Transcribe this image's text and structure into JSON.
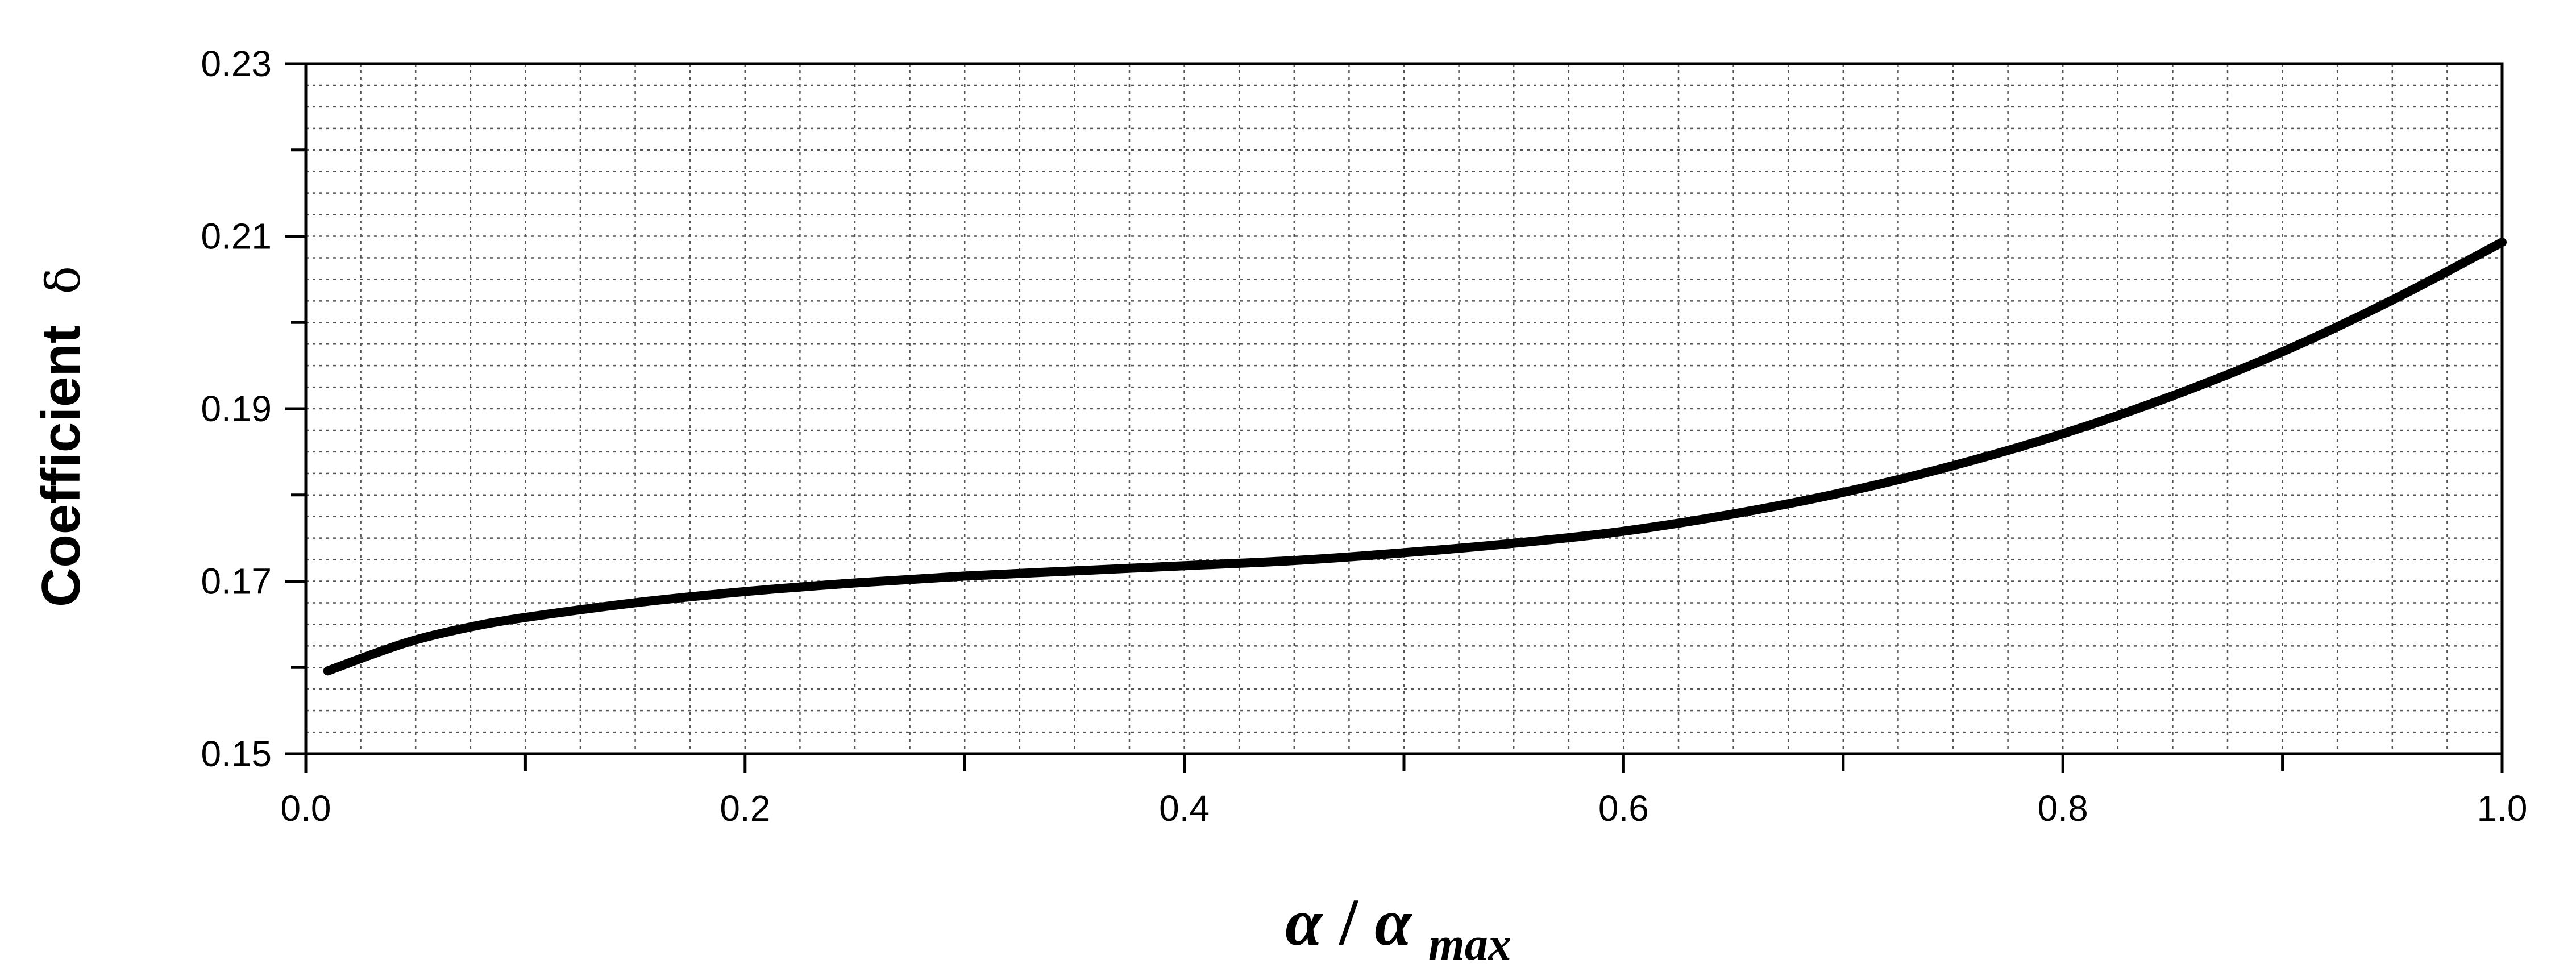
{
  "chart_data": {
    "type": "line",
    "title": "",
    "xlabel": {
      "main": "α",
      "slash": "/",
      "denominator": "α",
      "denominator_subscript": "max"
    },
    "ylabel": {
      "text": "Coefficient",
      "symbol": "δ"
    },
    "xlim": [
      0.0,
      1.0
    ],
    "ylim": [
      0.15,
      0.23
    ],
    "x_major_ticks": [
      0.0,
      0.2,
      0.4,
      0.6,
      0.8,
      1.0
    ],
    "x_tick_labels": [
      "0.0",
      "0.2",
      "0.4",
      "0.6",
      "0.8",
      "1.0"
    ],
    "y_major_ticks": [
      0.15,
      0.17,
      0.19,
      0.21,
      0.23
    ],
    "y_tick_labels": [
      "0.15",
      "0.17",
      "0.19",
      "0.21",
      "0.23"
    ],
    "grid": true,
    "minor_grid": true,
    "series": [
      {
        "color": "#000000",
        "x": [
          0.01,
          0.03,
          0.05,
          0.075,
          0.1,
          0.15,
          0.2,
          0.25,
          0.3,
          0.35,
          0.4,
          0.45,
          0.5,
          0.55,
          0.6,
          0.65,
          0.7,
          0.75,
          0.8,
          0.85,
          0.9,
          0.95,
          1.0
        ],
        "y": [
          0.1596,
          0.1615,
          0.1632,
          0.1647,
          0.1658,
          0.1675,
          0.1688,
          0.1698,
          0.1706,
          0.1712,
          0.1718,
          0.1724,
          0.1733,
          0.1744,
          0.1758,
          0.1778,
          0.1803,
          0.1834,
          0.1871,
          0.1915,
          0.1966,
          0.2026,
          0.2093
        ]
      }
    ]
  }
}
